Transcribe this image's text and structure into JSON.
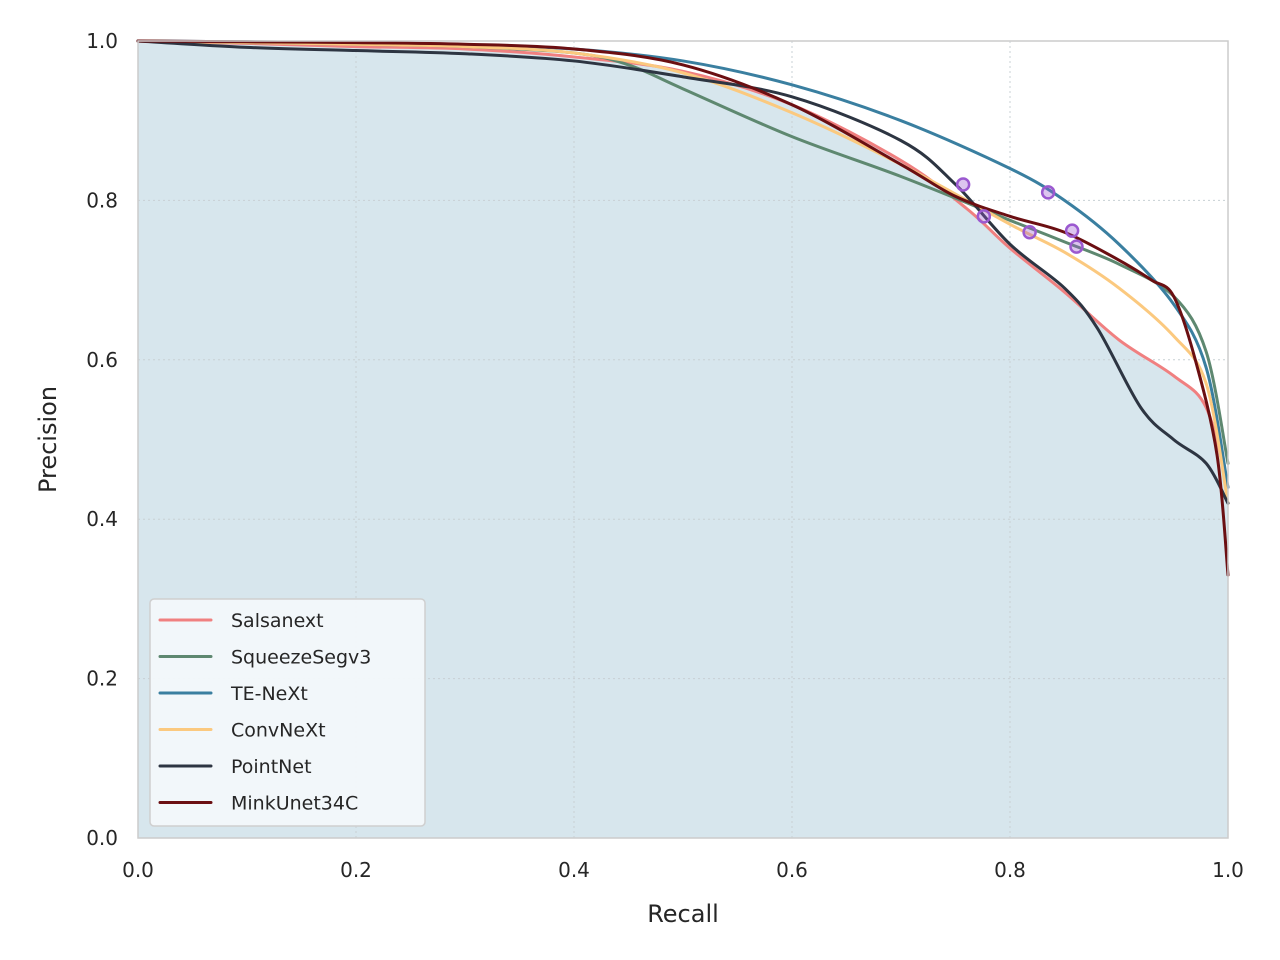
{
  "chart_data": {
    "type": "line",
    "title": "",
    "xlabel": "Recall",
    "ylabel": "Precision",
    "xlim": [
      0.0,
      1.0
    ],
    "ylim": [
      0.0,
      1.0
    ],
    "xticks": [
      "0.0",
      "0.2",
      "0.4",
      "0.6",
      "0.8",
      "1.0"
    ],
    "yticks": [
      "0.0",
      "0.2",
      "0.4",
      "0.6",
      "0.8",
      "1.0"
    ],
    "grid": true,
    "legend_position": "lower-left",
    "fill_color": "#d7e6ed",
    "marker_color": "#9b59d0",
    "series": [
      {
        "name": "Salsanext",
        "color": "#f08080",
        "x": [
          0.0,
          0.1,
          0.2,
          0.3,
          0.4,
          0.5,
          0.6,
          0.7,
          0.76,
          0.8,
          0.85,
          0.9,
          0.95,
          0.98,
          1.0
        ],
        "y": [
          1.0,
          0.997,
          0.993,
          0.99,
          0.98,
          0.962,
          0.92,
          0.85,
          0.79,
          0.74,
          0.685,
          0.625,
          0.58,
          0.54,
          0.44
        ]
      },
      {
        "name": "SqueezeSegv3",
        "color": "#5e8870",
        "x": [
          0.0,
          0.1,
          0.2,
          0.3,
          0.4,
          0.45,
          0.5,
          0.6,
          0.7,
          0.8,
          0.85,
          0.9,
          0.95,
          0.98,
          1.0
        ],
        "y": [
          1.0,
          0.998,
          0.996,
          0.993,
          0.985,
          0.97,
          0.94,
          0.88,
          0.83,
          0.775,
          0.748,
          0.72,
          0.68,
          0.61,
          0.47
        ]
      },
      {
        "name": "TE-NeXt",
        "color": "#3a7fa0",
        "x": [
          0.0,
          0.1,
          0.2,
          0.3,
          0.4,
          0.5,
          0.6,
          0.7,
          0.8,
          0.85,
          0.9,
          0.95,
          0.98,
          1.0
        ],
        "y": [
          1.0,
          0.999,
          0.998,
          0.995,
          0.99,
          0.975,
          0.945,
          0.9,
          0.84,
          0.8,
          0.745,
          0.67,
          0.59,
          0.44
        ]
      },
      {
        "name": "ConvNeXt",
        "color": "#fbc97f",
        "x": [
          0.0,
          0.1,
          0.2,
          0.3,
          0.4,
          0.5,
          0.6,
          0.7,
          0.8,
          0.85,
          0.9,
          0.95,
          0.98,
          1.0
        ],
        "y": [
          1.0,
          0.998,
          0.996,
          0.993,
          0.985,
          0.96,
          0.91,
          0.845,
          0.77,
          0.735,
          0.69,
          0.63,
          0.57,
          0.42
        ]
      },
      {
        "name": "PointNet",
        "color": "#2d3542",
        "x": [
          0.0,
          0.1,
          0.2,
          0.3,
          0.4,
          0.5,
          0.6,
          0.7,
          0.75,
          0.8,
          0.85,
          0.88,
          0.92,
          0.95,
          0.98,
          1.0
        ],
        "y": [
          1.0,
          0.992,
          0.988,
          0.984,
          0.975,
          0.955,
          0.93,
          0.875,
          0.82,
          0.745,
          0.69,
          0.64,
          0.54,
          0.5,
          0.47,
          0.42
        ]
      },
      {
        "name": "MinkUnet34C",
        "color": "#6b0f12",
        "x": [
          0.0,
          0.1,
          0.2,
          0.3,
          0.4,
          0.5,
          0.6,
          0.7,
          0.75,
          0.8,
          0.85,
          0.9,
          0.93,
          0.95,
          0.97,
          0.99,
          1.0
        ],
        "y": [
          1.0,
          0.999,
          0.998,
          0.996,
          0.99,
          0.97,
          0.92,
          0.845,
          0.805,
          0.78,
          0.76,
          0.725,
          0.7,
          0.68,
          0.6,
          0.48,
          0.33
        ]
      }
    ],
    "markers": [
      {
        "x": 0.757,
        "y": 0.82
      },
      {
        "x": 0.776,
        "y": 0.78
      },
      {
        "x": 0.835,
        "y": 0.81
      },
      {
        "x": 0.818,
        "y": 0.76
      },
      {
        "x": 0.857,
        "y": 0.762
      },
      {
        "x": 0.861,
        "y": 0.742
      }
    ]
  }
}
